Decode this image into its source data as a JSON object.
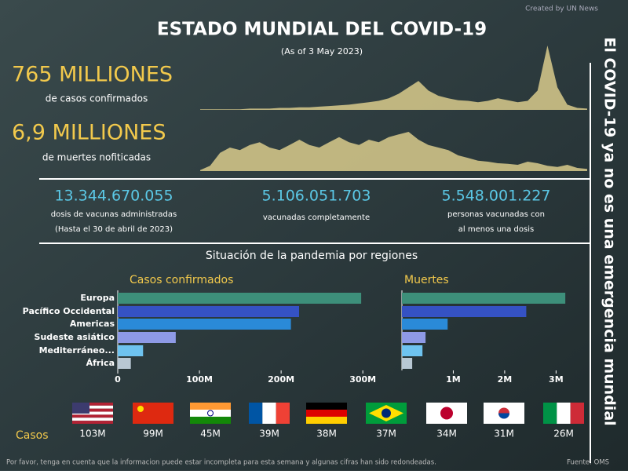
{
  "header": {
    "title": "ESTADO MUNDIAL DEL COVID-19",
    "subtitle": "(As of 3 May 2023)",
    "credit": "Created by UN News",
    "side_text": "El COVID-19 ya no es una emergencia mundial"
  },
  "headline": [
    {
      "value": "765 MILLIONES",
      "label": "de casos confirmados"
    },
    {
      "value": "6,9 MILLIONES",
      "label": "de muertes nofiticadas"
    }
  ],
  "stats": [
    {
      "value": "13.344.670.055",
      "lines": [
        "dosis de vacunas administradas",
        "(Hasta el 30 de abril de 2023)"
      ]
    },
    {
      "value": "5.106.051.703",
      "lines": [
        "vacunadas completamente"
      ]
    },
    {
      "value": "5.548.001.227",
      "lines": [
        "personas vacunadas con",
        "al menos una dosis"
      ]
    }
  ],
  "regions_title": "Situación de la pandemia por regiones",
  "chart_data": [
    {
      "type": "area",
      "color": "#d9cb8c",
      "values": [
        1,
        1,
        1,
        1,
        1,
        2,
        2,
        2,
        3,
        3,
        4,
        4,
        5,
        6,
        7,
        8,
        10,
        12,
        14,
        18,
        25,
        35,
        45,
        30,
        22,
        18,
        15,
        14,
        12,
        14,
        18,
        15,
        12,
        14,
        30,
        100,
        35,
        8,
        3,
        2
      ]
    },
    {
      "type": "area",
      "color": "#d9cb8c",
      "values": [
        2,
        10,
        35,
        45,
        40,
        50,
        55,
        45,
        40,
        50,
        60,
        50,
        45,
        55,
        65,
        55,
        50,
        60,
        55,
        65,
        70,
        75,
        60,
        50,
        45,
        40,
        30,
        25,
        20,
        18,
        15,
        14,
        12,
        18,
        15,
        10,
        8,
        12,
        6,
        4
      ]
    },
    {
      "type": "hbar",
      "title": "Casos confirmados",
      "categories": [
        "Europa",
        "Pacífico Occidental",
        "Americas",
        "Sudeste asiático",
        "Mediterráneo...",
        "África"
      ],
      "colors": [
        "#3d8f7a",
        "#3552c4",
        "#2a8ad8",
        "#8e9ae6",
        "#6ec3f0",
        "#b8c8d4"
      ],
      "values": [
        298000000,
        222000000,
        212000000,
        71000000,
        31000000,
        16000000
      ],
      "xlim": [
        0,
        320000000
      ],
      "xticks": [
        0,
        {
          "value": 100000000,
          "label": "100M"
        },
        {
          "value": 200000000,
          "label": "200M"
        },
        {
          "value": 300000000,
          "label": "300M"
        }
      ]
    },
    {
      "type": "hbar",
      "title": "Muertes",
      "colors": [
        "#3d8f7a",
        "#3552c4",
        "#2a8ad8",
        "#8e9ae6",
        "#6ec3f0",
        "#b8c8d4"
      ],
      "values": [
        3180000,
        2420000,
        890000,
        460000,
        400000,
        200000
      ],
      "xlim": [
        0,
        3300000
      ],
      "xticks": [
        {
          "value": 1000000,
          "label": "1M"
        },
        {
          "value": 2000000,
          "label": "2M"
        },
        {
          "value": 3000000,
          "label": "3M"
        }
      ]
    }
  ],
  "countries": {
    "label": "Casos",
    "values": [
      103000000,
      99000000,
      45000000,
      39000000,
      38000000,
      37000000,
      34000000,
      31000000,
      26000000
    ],
    "value_labels": [
      "103M",
      "99M",
      "45M",
      "39M",
      "38M",
      "37M",
      "34M",
      "31M",
      "26M"
    ]
  },
  "footer": {
    "note": "Por favor, tenga en cuenta que la informacion puede estar incompleta para esta semana y algunas cifras han sido redondeadas.",
    "source": "Fuente: OMS"
  }
}
